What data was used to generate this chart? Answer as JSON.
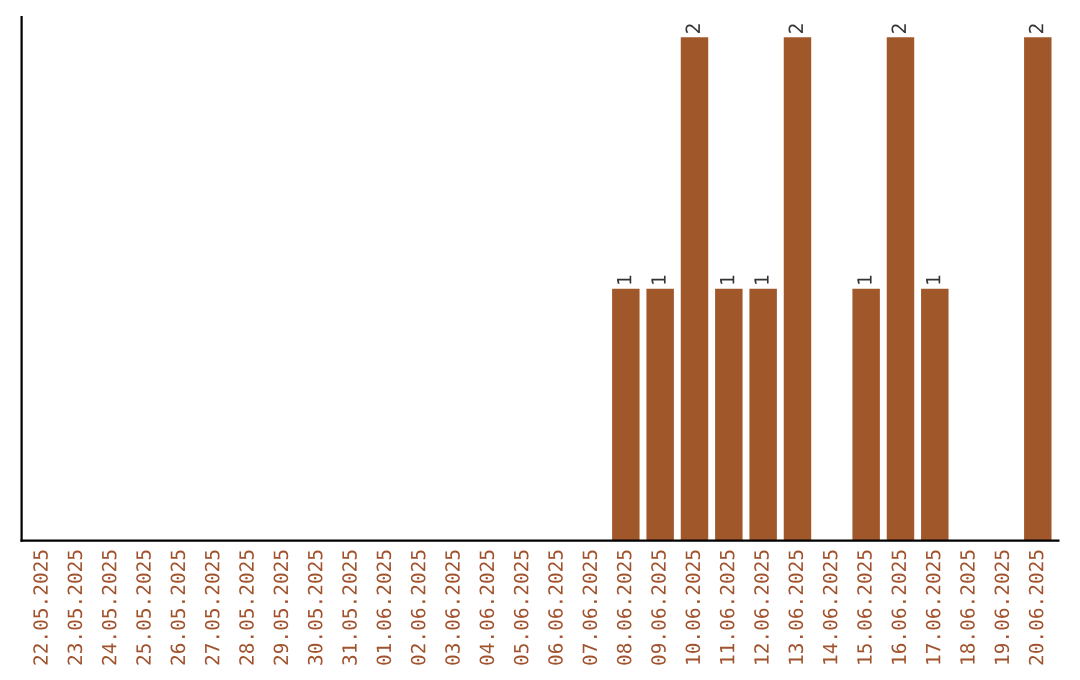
{
  "chart_data": {
    "type": "bar",
    "categories": [
      "22.05.2025",
      "23.05.2025",
      "24.05.2025",
      "25.05.2025",
      "26.05.2025",
      "27.05.2025",
      "28.05.2025",
      "29.05.2025",
      "30.05.2025",
      "31.05.2025",
      "01.06.2025",
      "02.06.2025",
      "03.06.2025",
      "04.06.2025",
      "05.06.2025",
      "06.06.2025",
      "07.06.2025",
      "08.06.2025",
      "09.06.2025",
      "10.06.2025",
      "11.06.2025",
      "12.06.2025",
      "13.06.2025",
      "14.06.2025",
      "15.06.2025",
      "16.06.2025",
      "17.06.2025",
      "18.06.2025",
      "19.06.2025",
      "20.06.2025"
    ],
    "values": [
      null,
      null,
      null,
      null,
      null,
      null,
      null,
      null,
      null,
      null,
      null,
      null,
      null,
      null,
      null,
      null,
      null,
      1,
      1,
      2,
      1,
      1,
      2,
      null,
      1,
      2,
      1,
      null,
      null,
      2
    ],
    "data_labels": true,
    "color": "#a0582a",
    "ylim": [
      0,
      2.08
    ],
    "tick_labels": "x",
    "grid": false,
    "legend": false
  }
}
